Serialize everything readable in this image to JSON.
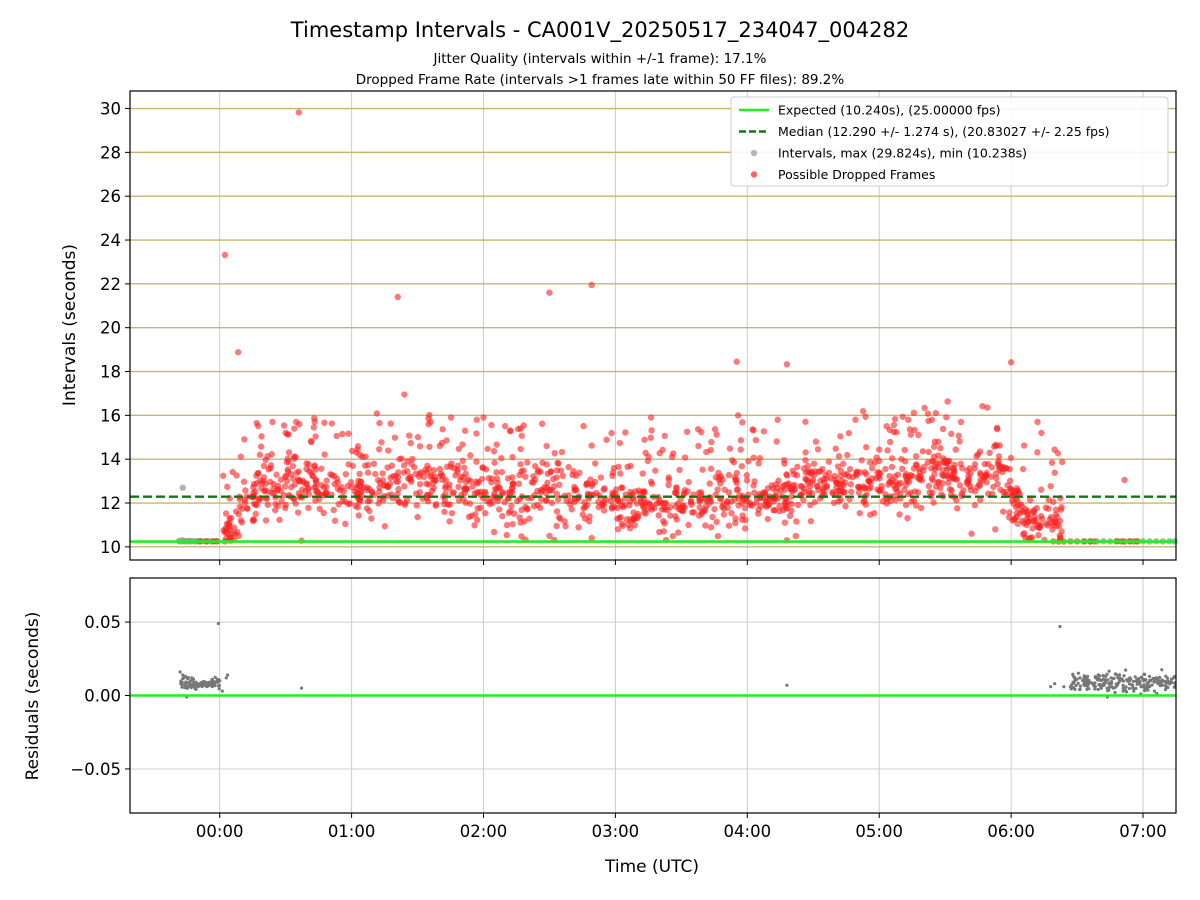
{
  "title": "Timestamp Intervals - CA001V_20250517_234047_004282",
  "subtitle_lines": [
    "Jitter Quality (intervals within +/-1 frame): 17.1%",
    "Dropped Frame Rate (intervals >1 frames late within 50 FF files): 89.2%"
  ],
  "colors": {
    "expected": "#22ee22",
    "median": "#117711",
    "intervals": "#999999",
    "dropped": "#ff2020",
    "residuals": "#777777",
    "ref_lines": "#c8b46e",
    "grid": "#cccccc"
  },
  "chart_data": [
    {
      "type": "scatter",
      "ylabel": "Intervals (seconds)",
      "ylim": [
        9.4,
        30.8
      ],
      "yticks": [
        10,
        12,
        14,
        16,
        18,
        20,
        22,
        24,
        26,
        28,
        30
      ],
      "xlim_hours": [
        -0.68,
        7.25
      ],
      "reference_lines_y": [
        10,
        12,
        14,
        16,
        18,
        20,
        22,
        24,
        26,
        28,
        30
      ],
      "expected_y": 10.24,
      "median_y": 12.29,
      "legend_position": "upper-right",
      "legend": [
        {
          "label": "Expected (10.240s), (25.00000 fps)",
          "kind": "line",
          "style": "solid",
          "color_key": "expected"
        },
        {
          "label": "Median (12.290 +/- 1.274 s), (20.83027 +/- 2.25 fps)",
          "kind": "line",
          "style": "dashed",
          "color_key": "median"
        },
        {
          "label": "Intervals, max (29.824s), min (10.238s)",
          "kind": "marker",
          "color_key": "intervals"
        },
        {
          "label": "Possible Dropped Frames",
          "kind": "marker",
          "color_key": "dropped"
        }
      ],
      "series": [
        {
          "name": "Intervals, max (29.824s), min (10.238s)",
          "points": [
            [
              -0.31,
              10.26
            ],
            [
              -0.3,
              10.27
            ],
            [
              -0.29,
              10.25
            ],
            [
              -0.28,
              10.3
            ],
            [
              -0.27,
              10.26
            ],
            [
              -0.28,
              12.7
            ],
            [
              -0.26,
              10.26
            ],
            [
              -0.25,
              10.25
            ],
            [
              -0.24,
              10.26
            ],
            [
              -0.23,
              10.27
            ],
            [
              -0.22,
              10.25
            ],
            [
              -0.21,
              10.26
            ],
            [
              -0.19,
              10.25
            ],
            [
              -0.18,
              10.26
            ],
            [
              -0.16,
              10.25
            ],
            [
              -0.14,
              10.26
            ],
            [
              -0.12,
              10.26
            ],
            [
              -0.1,
              10.25
            ],
            [
              -0.08,
              10.26
            ],
            [
              -0.06,
              10.25
            ],
            [
              -0.04,
              10.26
            ],
            [
              -0.02,
              10.26
            ],
            [
              6.56,
              10.25
            ],
            [
              6.6,
              10.26
            ],
            [
              6.65,
              10.25
            ],
            [
              6.7,
              10.26
            ],
            [
              6.75,
              10.25
            ],
            [
              6.8,
              10.26
            ],
            [
              6.85,
              10.25
            ],
            [
              6.9,
              10.26
            ],
            [
              6.95,
              10.25
            ],
            [
              7.0,
              10.26
            ],
            [
              7.05,
              10.25
            ],
            [
              7.1,
              10.26
            ],
            [
              7.15,
              10.25
            ],
            [
              7.2,
              10.26
            ],
            [
              7.24,
              10.25
            ]
          ]
        },
        {
          "name": "Possible Dropped Frames",
          "outliers": [
            [
              0.6,
              29.82
            ],
            [
              0.04,
              23.32
            ],
            [
              0.14,
              18.88
            ],
            [
              1.35,
              21.4
            ],
            [
              1.4,
              16.95
            ],
            [
              2.5,
              21.6
            ],
            [
              2.82,
              21.95
            ],
            [
              3.92,
              18.45
            ],
            [
              4.3,
              18.33
            ],
            [
              6.0,
              18.42
            ],
            [
              6.86,
              13.05
            ],
            [
              0.62,
              10.28
            ],
            [
              2.5,
              10.5
            ],
            [
              2.82,
              10.4
            ],
            [
              4.3,
              10.3
            ],
            [
              5.7,
              10.6
            ],
            [
              5.88,
              10.8
            ],
            [
              0.4,
              15.7
            ],
            [
              0.93,
              15.15
            ],
            [
              1.6,
              15.7
            ],
            [
              2.0,
              15.9
            ],
            [
              3.27,
              15.9
            ],
            [
              3.93,
              16.0
            ],
            [
              4.23,
              15.8
            ],
            [
              4.82,
              15.8
            ],
            [
              5.22,
              15.8
            ],
            [
              5.4,
              15.8
            ],
            [
              5.62,
              15.7
            ],
            [
              6.2,
              15.7
            ],
            [
              6.23,
              15.2
            ],
            [
              0.28,
              15.65
            ],
            [
              0.5,
              15.2
            ],
            [
              0.58,
              15.7
            ]
          ],
          "low_points": [
            [
              -0.15,
              10.25
            ],
            [
              -0.1,
              10.25
            ],
            [
              -0.05,
              10.25
            ],
            [
              -0.02,
              10.25
            ],
            [
              0.04,
              10.25
            ],
            [
              0.08,
              10.28
            ],
            [
              6.32,
              10.25
            ],
            [
              6.36,
              10.24
            ],
            [
              6.4,
              10.24
            ],
            [
              6.45,
              10.25
            ],
            [
              6.5,
              10.25
            ],
            [
              6.55,
              10.25
            ],
            [
              6.6,
              10.24
            ],
            [
              6.63,
              10.25
            ],
            [
              6.8,
              10.25
            ],
            [
              6.83,
              10.25
            ],
            [
              6.86,
              10.24
            ],
            [
              6.9,
              10.25
            ],
            [
              6.93,
              10.25
            ],
            [
              6.96,
              10.25
            ]
          ],
          "cloud_profile": [
            [
              0.02,
              10.7,
              0.3
            ],
            [
              0.12,
              11.1,
              0.5
            ],
            [
              0.25,
              12.2,
              0.6
            ],
            [
              0.35,
              12.6,
              0.6
            ],
            [
              0.5,
              12.9,
              0.65
            ],
            [
              0.75,
              12.6,
              0.7
            ],
            [
              1.0,
              12.6,
              0.7
            ],
            [
              1.25,
              12.8,
              0.7
            ],
            [
              1.5,
              12.9,
              0.7
            ],
            [
              1.75,
              12.6,
              0.7
            ],
            [
              2.0,
              12.4,
              0.7
            ],
            [
              2.25,
              12.3,
              0.7
            ],
            [
              2.5,
              12.4,
              0.7
            ],
            [
              2.75,
              12.2,
              0.7
            ],
            [
              3.0,
              12.0,
              0.6
            ],
            [
              3.25,
              12.0,
              0.6
            ],
            [
              3.5,
              11.8,
              0.55
            ],
            [
              3.75,
              12.2,
              0.6
            ],
            [
              4.0,
              12.3,
              0.65
            ],
            [
              4.25,
              12.3,
              0.6
            ],
            [
              4.4,
              12.7,
              0.6
            ],
            [
              4.75,
              12.9,
              0.6
            ],
            [
              5.0,
              13.0,
              0.55
            ],
            [
              5.25,
              13.0,
              0.6
            ],
            [
              5.5,
              13.3,
              0.55
            ],
            [
              5.75,
              13.2,
              0.6
            ],
            [
              5.95,
              13.1,
              0.6
            ],
            [
              6.1,
              11.3,
              0.5
            ],
            [
              6.25,
              11.4,
              0.6
            ],
            [
              6.4,
              10.9,
              0.5
            ]
          ]
        }
      ]
    },
    {
      "type": "scatter",
      "xlabel": "Time (UTC)",
      "ylabel": "Residuals (seconds)",
      "ylim": [
        -0.08,
        0.08
      ],
      "yticks": [
        -0.05,
        0.0,
        0.05
      ],
      "ytick_labels": [
        "−0.05",
        "0.00",
        "0.05"
      ],
      "xlim_hours": [
        -0.68,
        7.25
      ],
      "xticks_hours": [
        0,
        1,
        2,
        3,
        4,
        5,
        6,
        7
      ],
      "xtick_labels": [
        "00:00",
        "01:00",
        "02:00",
        "03:00",
        "04:00",
        "05:00",
        "06:00",
        "07:00"
      ],
      "zero_line_y": 0.0,
      "series": [
        {
          "name": "Residuals",
          "points": [
            [
              -0.3,
              0.016
            ],
            [
              -0.28,
              0.014
            ],
            [
              -0.27,
              0.012
            ],
            [
              -0.26,
              0.013
            ],
            [
              -0.25,
              -0.001
            ],
            [
              -0.22,
              0.01
            ],
            [
              -0.2,
              0.008
            ],
            [
              -0.18,
              0.009
            ],
            [
              -0.15,
              0.008
            ],
            [
              -0.12,
              0.009
            ],
            [
              -0.1,
              0.008
            ],
            [
              -0.08,
              0.009
            ],
            [
              -0.06,
              0.008
            ],
            [
              -0.03,
              0.009
            ],
            [
              -0.01,
              0.049
            ],
            [
              0.0,
              0.01
            ],
            [
              0.02,
              0.003
            ],
            [
              0.05,
              0.012
            ],
            [
              0.06,
              0.014
            ],
            [
              0.62,
              0.005
            ],
            [
              4.3,
              0.007
            ],
            [
              6.37,
              0.047
            ],
            [
              6.3,
              0.006
            ],
            [
              6.33,
              0.008
            ],
            [
              6.4,
              0.006
            ],
            [
              6.45,
              0.006
            ],
            [
              6.48,
              0.012
            ],
            [
              6.52,
              0.004
            ],
            [
              6.58,
              0.013
            ],
            [
              6.64,
              0.012
            ],
            [
              6.7,
              0.011
            ],
            [
              6.76,
              0.008
            ],
            [
              6.8,
              0.014
            ],
            [
              6.85,
              0.005
            ],
            [
              6.9,
              0.012
            ],
            [
              6.95,
              0.01
            ],
            [
              7.0,
              0.011
            ],
            [
              7.05,
              0.006
            ],
            [
              7.1,
              0.012
            ],
            [
              7.15,
              0.007
            ],
            [
              7.2,
              0.009
            ],
            [
              7.24,
              0.006
            ],
            [
              6.73,
              -0.001
            ],
            [
              6.93,
              0.003
            ]
          ],
          "dense_bands": [
            [
              -0.3,
              0.0,
              0.008,
              0.002
            ],
            [
              6.45,
              7.25,
              0.009,
              0.003
            ]
          ]
        }
      ]
    }
  ]
}
